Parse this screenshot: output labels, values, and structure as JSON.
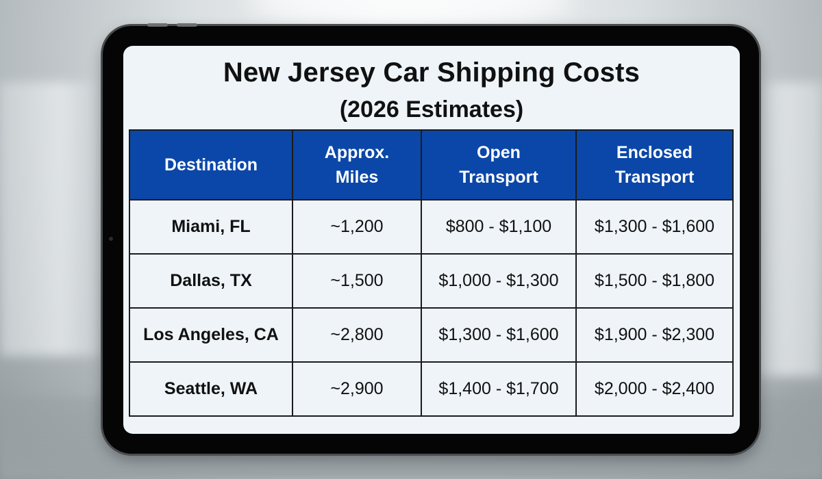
{
  "document": {
    "title": "New Jersey Car Shipping Costs",
    "subtitle": "(2026 Estimates)"
  },
  "table": {
    "headers": [
      {
        "line1": "Destination",
        "line2": ""
      },
      {
        "line1": "Approx.",
        "line2": "Miles"
      },
      {
        "line1": "Open",
        "line2": "Transport"
      },
      {
        "line1": "Enclosed",
        "line2": "Transport"
      }
    ],
    "rows": [
      {
        "destination": "Miami, FL",
        "miles": "~1,200",
        "open": "$800 - $1,100",
        "enclosed": "$1,300 - $1,600"
      },
      {
        "destination": "Dallas, TX",
        "miles": "~1,500",
        "open": "$1,000 - $1,300",
        "enclosed": "$1,500 - $1,800"
      },
      {
        "destination": "Los Angeles, CA",
        "miles": "~2,800",
        "open": "$1,300 - $1,600",
        "enclosed": "$1,900 - $2,300"
      },
      {
        "destination": "Seattle, WA",
        "miles": "~2,900",
        "open": "$1,400 - $1,700",
        "enclosed": "$2,000 - $2,400"
      }
    ]
  },
  "colors": {
    "header_background": "#0b47a8",
    "header_text": "#ffffff",
    "cell_background": "#eef4f8",
    "border": "#1b1b1b",
    "device_frame": "#050505"
  }
}
